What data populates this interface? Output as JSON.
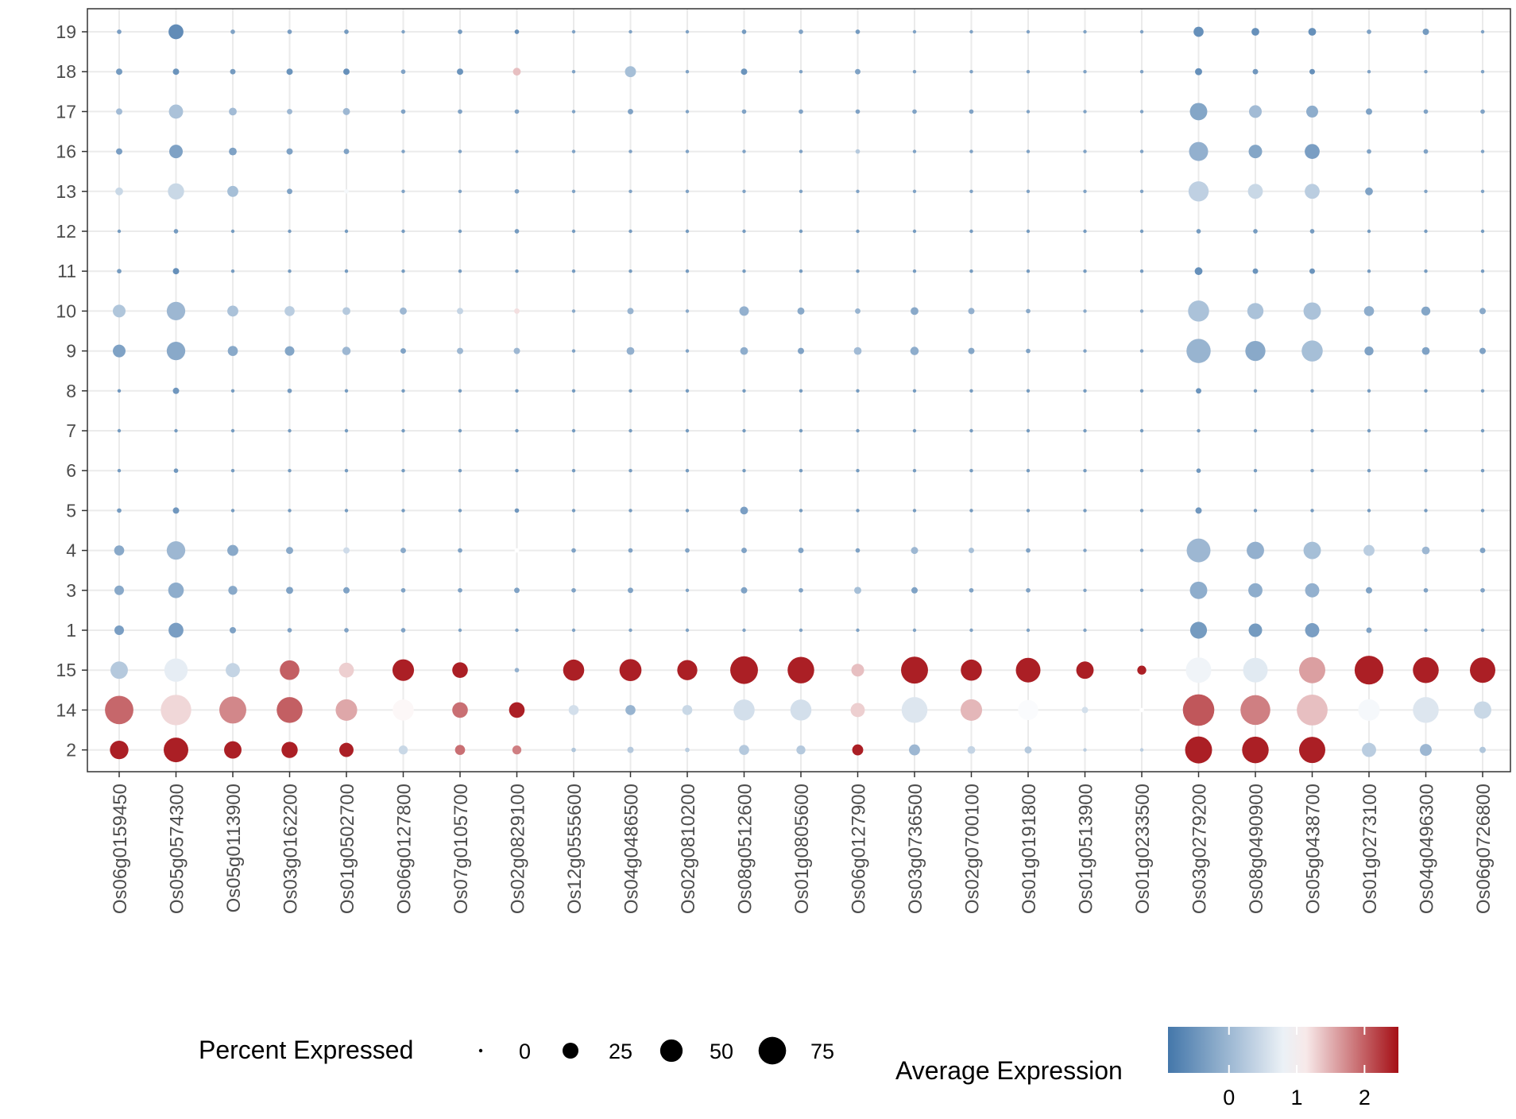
{
  "chart_data": {
    "type": "dotplot",
    "title": "",
    "xlabel": "",
    "ylabel": "",
    "genes": [
      "Os06g0159450",
      "Os05g0574300",
      "Os05g0113900",
      "Os03g0162200",
      "Os01g0502700",
      "Os06g0127800",
      "Os07g0105700",
      "Os02g0829100",
      "Os12g0555600",
      "Os04g0486500",
      "Os02g0810200",
      "Os08g0512600",
      "Os01g0805600",
      "Os06g0127900",
      "Os03g0736500",
      "Os02g0700100",
      "Os01g0191800",
      "Os01g0513900",
      "Os01g0233500",
      "Os03g0279200",
      "Os08g0490900",
      "Os05g0438700",
      "Os01g0273100",
      "Os04g0496300",
      "Os06g0726800"
    ],
    "clusters": [
      "19",
      "18",
      "17",
      "16",
      "13",
      "12",
      "11",
      "10",
      "9",
      "8",
      "7",
      "6",
      "5",
      "4",
      "3",
      "1",
      "15",
      "14",
      "2"
    ],
    "percent_expressed": [
      [
        2,
        22,
        2,
        2,
        2,
        1,
        2,
        2,
        1,
        1,
        1,
        2,
        2,
        2,
        1,
        1,
        1,
        1,
        1,
        10,
        6,
        6,
        2,
        4,
        1
      ],
      [
        4,
        4,
        3,
        4,
        4,
        2,
        4,
        6,
        1,
        12,
        1,
        4,
        1,
        3,
        1,
        1,
        1,
        1,
        1,
        5,
        3,
        3,
        1,
        1,
        1
      ],
      [
        4,
        20,
        6,
        3,
        5,
        2,
        2,
        2,
        1,
        3,
        1,
        2,
        2,
        2,
        2,
        2,
        1,
        1,
        1,
        30,
        16,
        14,
        4,
        2,
        2
      ],
      [
        4,
        18,
        6,
        4,
        3,
        1,
        1,
        1,
        1,
        1,
        1,
        1,
        1,
        2,
        1,
        1,
        1,
        1,
        1,
        36,
        18,
        22,
        2,
        2,
        1
      ],
      [
        6,
        26,
        12,
        3,
        2,
        1,
        1,
        2,
        1,
        1,
        1,
        1,
        1,
        1,
        1,
        1,
        1,
        1,
        1,
        40,
        22,
        22,
        6,
        1,
        1
      ],
      [
        1,
        2,
        1,
        1,
        1,
        1,
        1,
        2,
        1,
        1,
        1,
        1,
        1,
        1,
        1,
        1,
        1,
        1,
        1,
        2,
        2,
        2,
        1,
        1,
        1
      ],
      [
        2,
        4,
        1,
        1,
        1,
        1,
        1,
        1,
        1,
        1,
        1,
        1,
        1,
        1,
        1,
        1,
        1,
        1,
        1,
        6,
        3,
        3,
        1,
        1,
        1
      ],
      [
        16,
        34,
        12,
        10,
        6,
        5,
        4,
        3,
        1,
        4,
        1,
        9,
        5,
        3,
        6,
        4,
        2,
        1,
        1,
        44,
        26,
        30,
        10,
        8,
        4
      ],
      [
        16,
        34,
        10,
        9,
        7,
        3,
        4,
        4,
        1,
        6,
        1,
        6,
        4,
        6,
        7,
        4,
        2,
        1,
        1,
        58,
        40,
        44,
        8,
        6,
        4
      ],
      [
        1,
        4,
        1,
        2,
        1,
        1,
        1,
        1,
        1,
        1,
        1,
        1,
        1,
        1,
        1,
        1,
        1,
        1,
        1,
        3,
        1,
        1,
        1,
        1,
        1
      ],
      [
        1,
        1,
        1,
        1,
        1,
        1,
        1,
        1,
        1,
        1,
        1,
        1,
        1,
        1,
        1,
        1,
        1,
        1,
        1,
        1,
        1,
        1,
        1,
        1,
        1
      ],
      [
        1,
        2,
        1,
        1,
        1,
        1,
        1,
        1,
        1,
        1,
        1,
        1,
        1,
        1,
        1,
        1,
        1,
        1,
        1,
        2,
        1,
        1,
        1,
        1,
        1
      ],
      [
        2,
        4,
        1,
        1,
        1,
        1,
        1,
        2,
        1,
        1,
        1,
        6,
        1,
        1,
        1,
        1,
        1,
        1,
        1,
        4,
        1,
        1,
        1,
        1,
        1
      ],
      [
        10,
        34,
        12,
        5,
        4,
        3,
        2,
        2,
        2,
        2,
        2,
        3,
        3,
        2,
        5,
        3,
        2,
        1,
        1,
        56,
        30,
        30,
        12,
        6,
        3
      ],
      [
        9,
        24,
        8,
        5,
        4,
        2,
        2,
        3,
        2,
        3,
        1,
        4,
        2,
        5,
        4,
        2,
        2,
        1,
        1,
        30,
        20,
        20,
        4,
        2,
        2
      ],
      [
        9,
        22,
        4,
        2,
        2,
        2,
        1,
        1,
        1,
        1,
        1,
        1,
        1,
        1,
        1,
        1,
        1,
        1,
        1,
        28,
        18,
        20,
        3,
        1,
        1
      ],
      [
        30,
        54,
        20,
        38,
        22,
        46,
        24,
        2,
        44,
        48,
        40,
        76,
        70,
        16,
        72,
        44,
        60,
        30,
        8,
        64,
        60,
        68,
        82,
        66,
        64
      ],
      [
        80,
        92,
        72,
        66,
        46,
        44,
        24,
        24,
        10,
        10,
        10,
        44,
        44,
        20,
        66,
        46,
        40,
        4,
        2,
        98,
        88,
        94,
        46,
        66,
        30
      ],
      [
        34,
        60,
        30,
        26,
        20,
        8,
        10,
        8,
        2,
        4,
        2,
        10,
        8,
        12,
        12,
        6,
        5,
        1,
        1,
        72,
        70,
        68,
        20,
        14,
        4
      ]
    ],
    "average_expression": [
      [
        -0.35,
        -0.6,
        -0.3,
        -0.35,
        -0.4,
        -0.3,
        -0.4,
        -0.55,
        -0.3,
        -0.3,
        -0.3,
        -0.4,
        -0.3,
        -0.4,
        -0.3,
        -0.3,
        -0.3,
        -0.3,
        -0.3,
        -0.55,
        -0.55,
        -0.55,
        -0.3,
        -0.4,
        -0.3
      ],
      [
        -0.4,
        -0.5,
        -0.4,
        -0.5,
        -0.55,
        -0.3,
        -0.5,
        1.4,
        -0.3,
        0.1,
        -0.3,
        -0.5,
        -0.3,
        -0.3,
        -0.3,
        -0.3,
        -0.3,
        -0.3,
        -0.3,
        -0.55,
        -0.45,
        -0.55,
        -0.3,
        -0.3,
        -0.3
      ],
      [
        0.05,
        0.15,
        0.05,
        0.0,
        0.0,
        -0.3,
        -0.3,
        -0.3,
        -0.3,
        -0.3,
        -0.3,
        -0.3,
        -0.3,
        -0.3,
        -0.3,
        -0.3,
        -0.3,
        -0.3,
        -0.3,
        -0.25,
        0.05,
        -0.15,
        -0.3,
        -0.3,
        -0.3
      ],
      [
        -0.35,
        -0.3,
        -0.3,
        -0.3,
        -0.3,
        -0.3,
        -0.3,
        -0.3,
        -0.3,
        -0.3,
        -0.3,
        -0.3,
        -0.3,
        0.25,
        -0.3,
        -0.3,
        -0.3,
        -0.3,
        -0.3,
        -0.1,
        -0.25,
        -0.35,
        -0.3,
        -0.3,
        -0.3
      ],
      [
        0.45,
        0.45,
        0.1,
        -0.3,
        0.9,
        -0.3,
        -0.3,
        -0.3,
        -0.3,
        -0.3,
        -0.3,
        -0.3,
        -0.3,
        -0.3,
        -0.3,
        -0.3,
        -0.3,
        -0.3,
        -0.3,
        0.35,
        0.45,
        0.3,
        -0.3,
        -0.3,
        -0.3
      ],
      [
        -0.4,
        -0.4,
        -0.4,
        -0.4,
        -0.4,
        -0.4,
        -0.4,
        -0.4,
        -0.4,
        -0.4,
        -0.4,
        -0.4,
        -0.4,
        -0.4,
        -0.4,
        -0.4,
        -0.4,
        -0.4,
        -0.4,
        -0.4,
        -0.4,
        -0.4,
        -0.4,
        -0.4,
        -0.4
      ],
      [
        -0.4,
        -0.55,
        -0.4,
        -0.4,
        -0.4,
        -0.4,
        -0.4,
        -0.4,
        -0.4,
        -0.4,
        -0.4,
        -0.4,
        -0.4,
        -0.4,
        -0.4,
        -0.4,
        -0.4,
        -0.4,
        -0.4,
        -0.55,
        -0.5,
        -0.5,
        -0.4,
        -0.4,
        -0.4
      ],
      [
        0.2,
        0.0,
        0.15,
        0.3,
        0.25,
        0.0,
        0.4,
        1.2,
        -0.2,
        -0.05,
        -0.2,
        -0.1,
        -0.2,
        -0.05,
        -0.2,
        -0.1,
        -0.2,
        -0.2,
        -0.2,
        0.15,
        0.15,
        0.15,
        -0.15,
        -0.25,
        -0.2
      ],
      [
        -0.3,
        -0.2,
        -0.2,
        -0.25,
        0.0,
        -0.3,
        0.0,
        0.0,
        -0.3,
        -0.1,
        -0.3,
        -0.15,
        -0.3,
        0.05,
        -0.15,
        -0.25,
        -0.3,
        -0.3,
        -0.3,
        -0.05,
        -0.2,
        0.1,
        -0.3,
        -0.3,
        -0.3
      ],
      [
        -0.45,
        -0.45,
        -0.4,
        -0.4,
        -0.4,
        -0.4,
        -0.4,
        -0.4,
        -0.4,
        -0.4,
        -0.4,
        -0.4,
        -0.4,
        -0.4,
        -0.4,
        -0.4,
        -0.4,
        -0.4,
        -0.4,
        -0.5,
        -0.4,
        -0.4,
        -0.4,
        -0.4,
        -0.4
      ],
      [
        -0.4,
        -0.4,
        -0.4,
        -0.4,
        -0.4,
        -0.4,
        -0.4,
        -0.4,
        -0.4,
        -0.4,
        -0.4,
        -0.4,
        -0.4,
        -0.4,
        -0.4,
        -0.4,
        -0.4,
        -0.4,
        -0.4,
        -0.4,
        -0.4,
        -0.4,
        -0.4,
        -0.4,
        -0.4
      ],
      [
        -0.4,
        -0.45,
        -0.4,
        -0.4,
        -0.4,
        -0.4,
        -0.4,
        -0.45,
        -0.4,
        -0.4,
        -0.4,
        -0.4,
        -0.4,
        -0.4,
        -0.4,
        -0.4,
        -0.4,
        -0.4,
        -0.4,
        -0.45,
        -0.4,
        -0.4,
        -0.4,
        -0.4,
        -0.4
      ],
      [
        -0.4,
        -0.45,
        -0.4,
        -0.4,
        -0.4,
        -0.4,
        -0.4,
        -0.45,
        -0.4,
        -0.4,
        -0.4,
        -0.35,
        -0.4,
        -0.4,
        -0.4,
        -0.4,
        -0.4,
        -0.4,
        -0.4,
        -0.45,
        -0.4,
        -0.4,
        -0.4,
        -0.4,
        -0.4
      ],
      [
        -0.2,
        0.0,
        -0.2,
        -0.2,
        0.5,
        -0.2,
        -0.3,
        1.0,
        -0.3,
        -0.3,
        -0.3,
        -0.3,
        -0.3,
        -0.3,
        0.0,
        0.1,
        -0.3,
        -0.3,
        -0.3,
        0.0,
        -0.1,
        0.1,
        0.3,
        0.0,
        -0.3
      ],
      [
        -0.2,
        -0.15,
        -0.2,
        -0.3,
        -0.3,
        -0.3,
        -0.3,
        -0.3,
        -0.3,
        -0.3,
        -0.3,
        -0.3,
        -0.3,
        0.1,
        -0.3,
        -0.3,
        -0.3,
        -0.3,
        -0.3,
        -0.15,
        -0.15,
        -0.1,
        -0.3,
        -0.3,
        -0.3
      ],
      [
        -0.35,
        -0.35,
        -0.3,
        -0.3,
        -0.3,
        -0.3,
        -0.3,
        -0.3,
        -0.3,
        -0.3,
        -0.3,
        -0.3,
        -0.3,
        -0.3,
        -0.3,
        -0.3,
        -0.3,
        -0.3,
        -0.3,
        -0.4,
        -0.4,
        -0.35,
        -0.3,
        -0.3,
        -0.3
      ],
      [
        0.25,
        0.75,
        0.4,
        2.0,
        1.3,
        2.4,
        2.4,
        -0.1,
        2.4,
        2.4,
        2.4,
        2.4,
        2.4,
        1.4,
        2.4,
        2.4,
        2.4,
        2.4,
        2.4,
        0.85,
        0.7,
        1.6,
        2.4,
        2.4,
        2.4
      ],
      [
        1.95,
        1.25,
        1.75,
        2.0,
        1.55,
        1.05,
        1.9,
        2.4,
        0.55,
        -0.05,
        0.45,
        0.55,
        0.55,
        1.3,
        0.65,
        1.45,
        0.95,
        0.55,
        1.0,
        2.05,
        1.8,
        1.4,
        0.9,
        0.65,
        0.45
      ],
      [
        2.4,
        2.4,
        2.4,
        2.4,
        2.4,
        0.45,
        1.9,
        1.8,
        0.2,
        0.25,
        0.3,
        0.25,
        0.25,
        2.4,
        0.0,
        0.4,
        0.25,
        0.3,
        0.3,
        2.4,
        2.4,
        2.4,
        0.3,
        0.0,
        0.2
      ]
    ],
    "size_legend": {
      "title": "Percent Expressed",
      "breaks": [
        0,
        25,
        50,
        75
      ]
    },
    "color_legend": {
      "title": "Average Expression",
      "breaks": [
        0,
        1,
        2
      ],
      "domain": [
        -0.9,
        2.5
      ],
      "colors": {
        "low": "#4477aa",
        "mid": "#ffffff",
        "high": "#a50f15"
      }
    },
    "grid": true,
    "legend_position": "bottom"
  }
}
